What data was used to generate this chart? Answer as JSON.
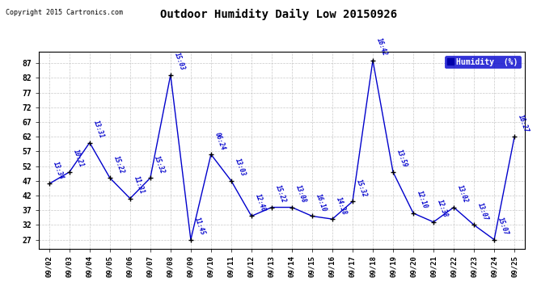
{
  "title": "Outdoor Humidity Daily Low 20150926",
  "copyright": "Copyright 2015 Cartronics.com",
  "legend_label": "Humidity  (%)",
  "background_color": "#ffffff",
  "line_color": "#0000cc",
  "marker_color": "#000000",
  "grid_color": "#bbbbbb",
  "yticks": [
    27,
    32,
    37,
    42,
    47,
    52,
    57,
    62,
    67,
    72,
    77,
    82,
    87
  ],
  "ylim": [
    24,
    91
  ],
  "dates": [
    "09/02",
    "09/03",
    "09/04",
    "09/05",
    "09/06",
    "09/07",
    "09/08",
    "09/09",
    "09/10",
    "09/11",
    "09/12",
    "09/13",
    "09/14",
    "09/15",
    "09/16",
    "09/17",
    "09/18",
    "09/19",
    "09/20",
    "09/21",
    "09/22",
    "09/23",
    "09/24",
    "09/25"
  ],
  "values": [
    46,
    50,
    60,
    48,
    41,
    48,
    83,
    27,
    56,
    47,
    35,
    38,
    38,
    35,
    34,
    40,
    88,
    50,
    36,
    33,
    38,
    32,
    27,
    62
  ],
  "time_labels": [
    "13:34",
    "10:21",
    "13:31",
    "15:22",
    "11:31",
    "15:32",
    "15:03",
    "11:45",
    "06:24",
    "13:03",
    "12:40",
    "15:22",
    "13:08",
    "16:10",
    "14:38",
    "15:32",
    "16:42",
    "13:59",
    "12:10",
    "12:38",
    "13:02",
    "13:07",
    "15:07",
    "16:27"
  ]
}
